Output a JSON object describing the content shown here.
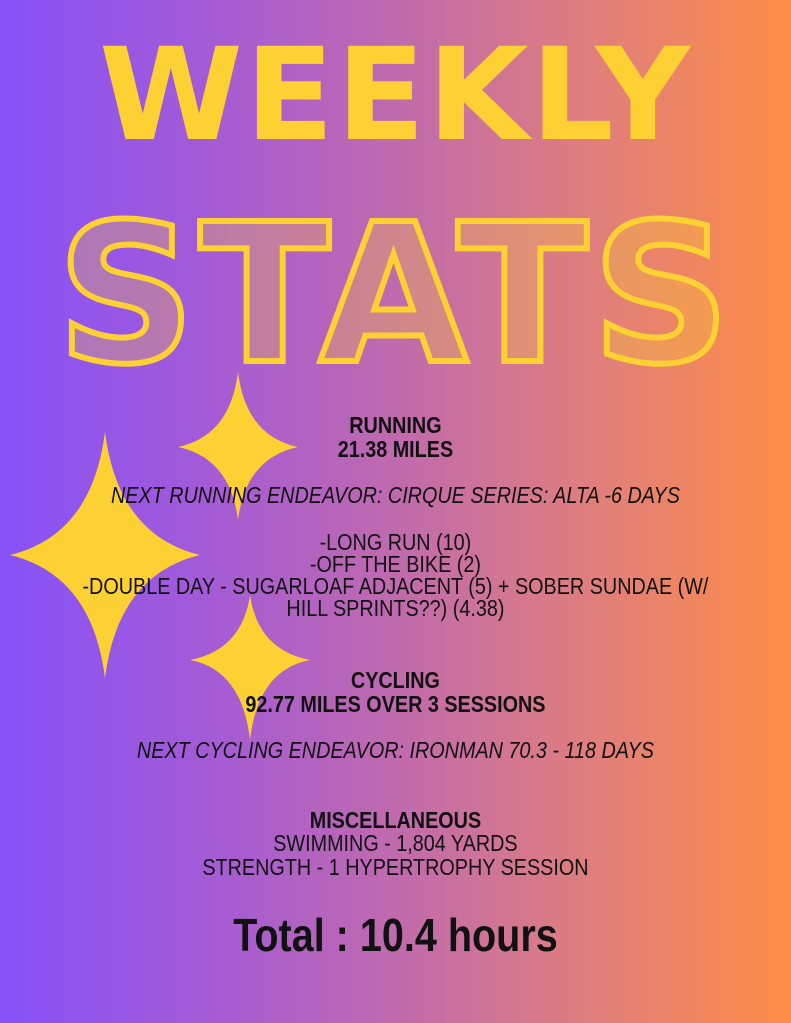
{
  "title": {
    "line1": "WEEKLY",
    "line2": "STATS"
  },
  "colors": {
    "gradient_left": "#8652f8",
    "gradient_right": "#fd8c45",
    "accent": "#fdd033",
    "text": "#111111"
  },
  "decorations": [
    "sparkle-icon",
    "sparkle-icon",
    "sparkle-icon"
  ],
  "running": {
    "heading": "RUNNING",
    "distance": "21.38 MILES",
    "next": "NEXT RUNNING ENDEAVOR: CIRQUE SERIES: ALTA -6 DAYS",
    "items": [
      "-LONG RUN (10)",
      "-OFF THE BIKE (2)",
      "-DOUBLE DAY - SUGARLOAF ADJACENT (5) + SOBER SUNDAE (W/",
      "HILL SPRINTS??) (4.38)"
    ]
  },
  "cycling": {
    "heading": "CYCLING",
    "distance": "92.77  MILES OVER 3 SESSIONS",
    "next": "NEXT CYCLING ENDEAVOR: IRONMAN 70.3 -  118 DAYS"
  },
  "misc": {
    "heading": "MISCELLANEOUS",
    "items": [
      "SWIMMING - 1,804 YARDS",
      "STRENGTH - 1 HYPERTROPHY SESSION"
    ]
  },
  "total": "Total : 10.4 hours"
}
